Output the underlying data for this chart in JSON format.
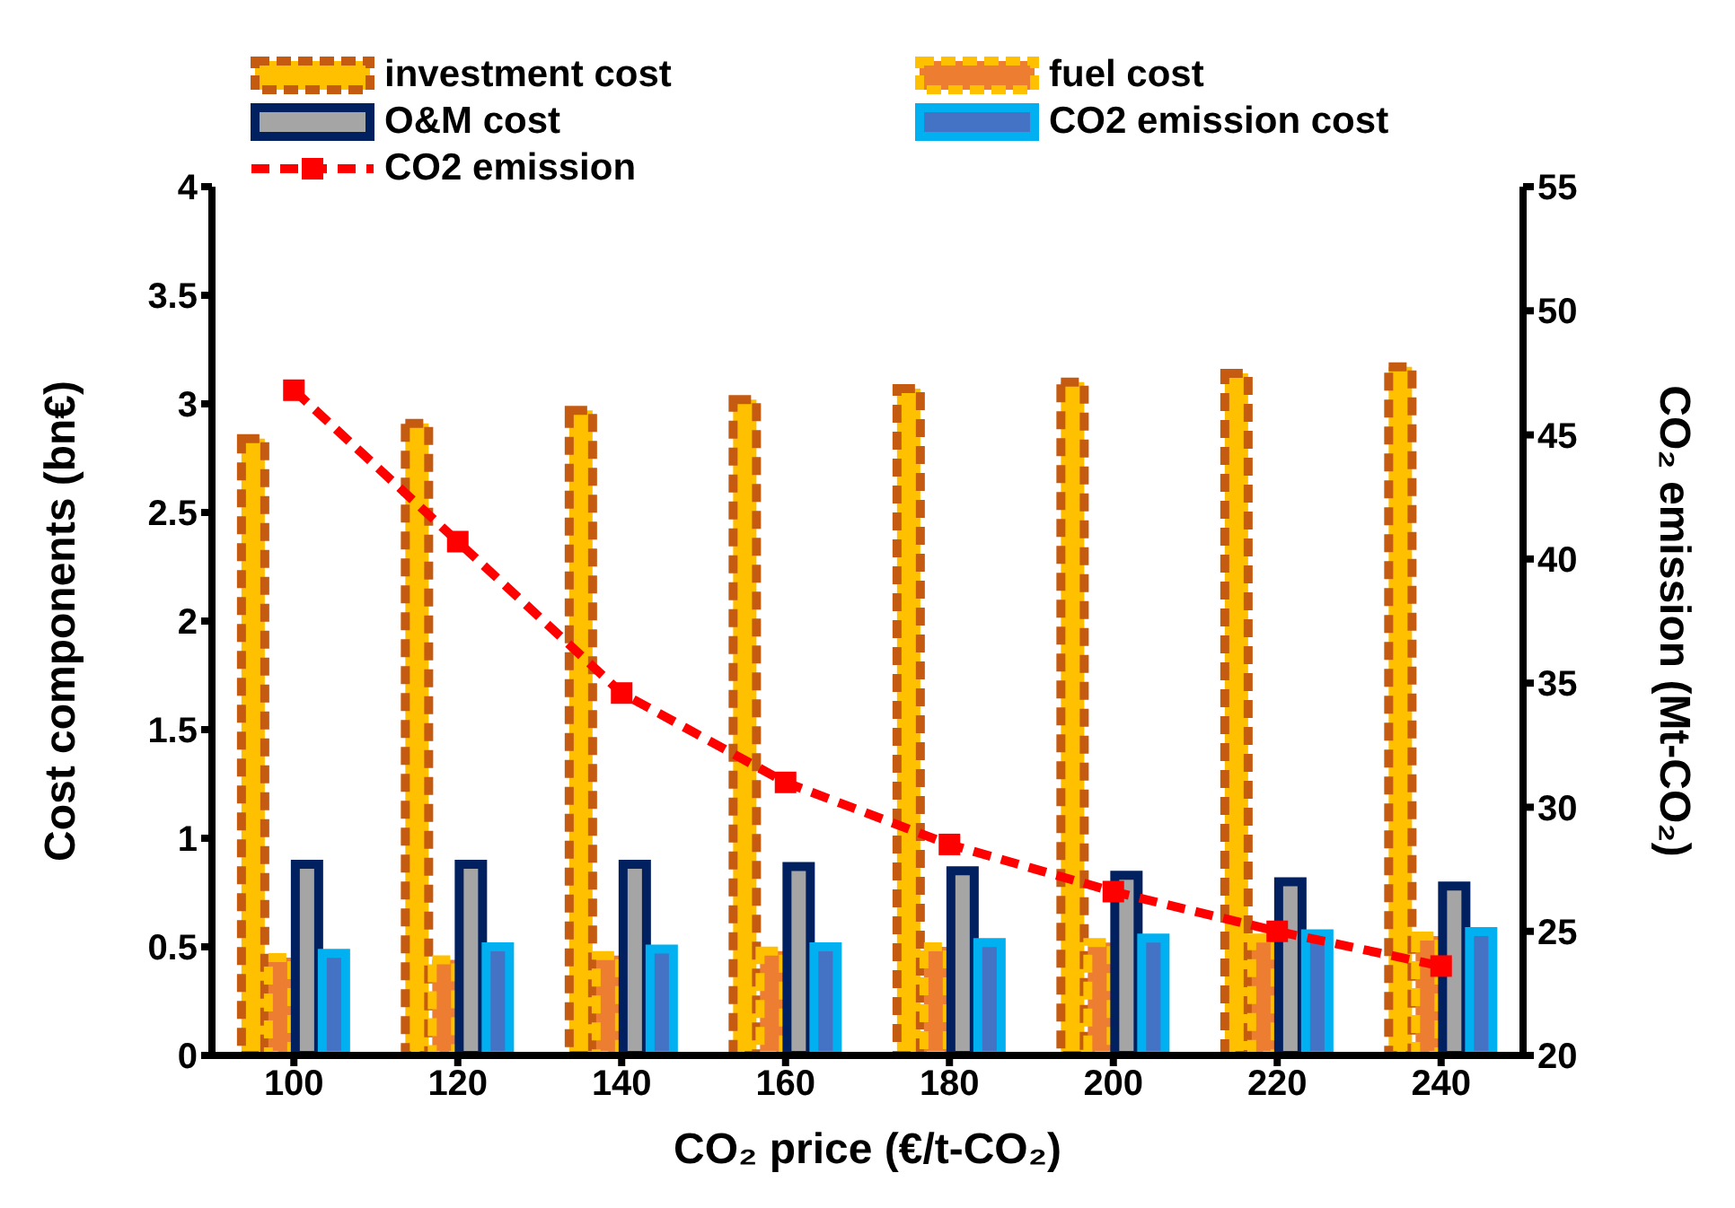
{
  "chart_data": {
    "type": "bar",
    "xlabel": "CO₂ price (€/t-CO₂)",
    "ylabel": "Cost components (bn€)",
    "y2label": "CO₂ emission (Mt-CO₂)",
    "categories": [
      "100",
      "120",
      "140",
      "160",
      "180",
      "200",
      "220",
      "240"
    ],
    "series": [
      {
        "name": "investment cost",
        "color": "#ffc000",
        "values": [
          2.84,
          2.91,
          2.97,
          3.02,
          3.07,
          3.1,
          3.14,
          3.17
        ]
      },
      {
        "name": "fuel cost",
        "color": "#ed7d31",
        "values": [
          0.45,
          0.44,
          0.46,
          0.48,
          0.5,
          0.52,
          0.54,
          0.55
        ]
      },
      {
        "name": "O&M cost",
        "color": "#a5a5a5",
        "values": [
          0.88,
          0.88,
          0.88,
          0.87,
          0.85,
          0.83,
          0.8,
          0.78
        ]
      },
      {
        "name": "CO2 emission cost",
        "color": "#4472c4",
        "values": [
          0.47,
          0.5,
          0.49,
          0.5,
          0.52,
          0.54,
          0.56,
          0.57
        ]
      },
      {
        "name": "CO2 emission",
        "type": "line",
        "axis": "y2",
        "color": "#ff0000",
        "marker": "square",
        "line_style": "dashed",
        "values": [
          46.8,
          40.7,
          34.6,
          31.0,
          28.5,
          26.6,
          25.0,
          23.6
        ]
      }
    ],
    "ylim": [
      0,
      4
    ],
    "yticks": [
      0,
      0.5,
      1,
      1.5,
      2,
      2.5,
      3,
      3.5,
      4
    ],
    "y2lim": [
      20,
      55
    ],
    "y2ticks": [
      20,
      25,
      30,
      35,
      40,
      45,
      50,
      55
    ],
    "legend": "top",
    "grid": false
  }
}
